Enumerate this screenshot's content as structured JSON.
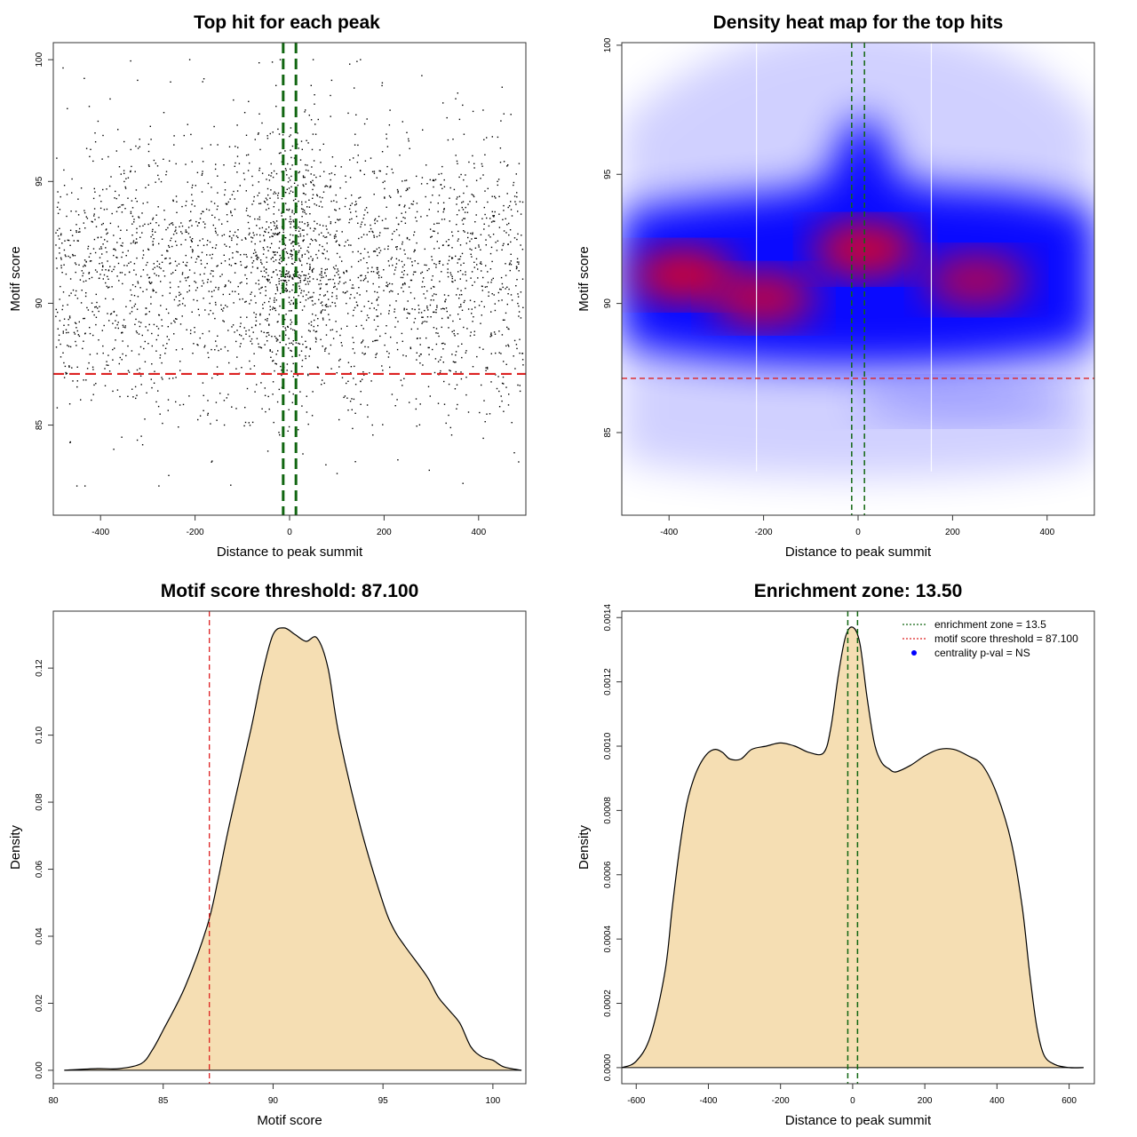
{
  "colors": {
    "threshold_line": "#dd2222",
    "enrichment_line": "#116611",
    "density_fill": "#f5deb3",
    "heat_low": "#ffffff",
    "heat_mid": "#0000ff",
    "heat_high": "#ff0000",
    "point": "#000000",
    "centrality_marker": "#0000ff"
  },
  "chart_data": [
    {
      "id": "scatter",
      "type": "scatter",
      "title": "Top hit for each peak",
      "xlabel": "Distance to peak summit",
      "ylabel": "Motif score",
      "xlim": [
        -500,
        500
      ],
      "ylim": [
        81.3,
        100.7
      ],
      "xticks": [
        -400,
        -200,
        0,
        200,
        400
      ],
      "yticks": [
        85,
        90,
        95,
        100
      ],
      "threshold": 87.1,
      "enrichment_lines": [
        -13.5,
        13.5
      ],
      "n_points": 3000,
      "seed": 1,
      "score_mean": 91.3,
      "score_sd": 2.9,
      "central_fraction": 0.12
    },
    {
      "id": "heatmap",
      "type": "heatmap",
      "title": "Density heat map for the top hits",
      "xlabel": "Distance to peak summit",
      "ylabel": "Motif score",
      "xlim": [
        -500,
        500
      ],
      "ylim": [
        81.8,
        100.1
      ],
      "xticks": [
        -400,
        -200,
        0,
        200,
        400
      ],
      "yticks": [
        85,
        90,
        95,
        100
      ],
      "threshold": 87.1,
      "enrichment_lines": [
        -13.5,
        13.5
      ],
      "hotspots": [
        {
          "x": -370,
          "y": 91.1,
          "weight": 1.0
        },
        {
          "x": -200,
          "y": 90.2,
          "weight": 0.9
        },
        {
          "x": 15,
          "y": 92.1,
          "weight": 1.0
        },
        {
          "x": 250,
          "y": 90.9,
          "weight": 0.8
        }
      ]
    },
    {
      "id": "score-density",
      "type": "area",
      "title": "Motif score threshold: 87.100",
      "xlabel": "Motif score",
      "ylabel": "Density",
      "xlim": [
        80,
        101.5
      ],
      "ylim": [
        -0.004,
        0.137
      ],
      "xticks": [
        80,
        85,
        90,
        95,
        100
      ],
      "yticks": [
        0.0,
        0.02,
        0.04,
        0.06,
        0.08,
        0.1,
        0.12
      ],
      "ytick_labels": [
        "0.00",
        "0.02",
        "0.04",
        "0.06",
        "0.08",
        "0.10",
        "0.12"
      ],
      "threshold": 87.1,
      "x": [
        80.5,
        82.0,
        83.0,
        84.0,
        84.5,
        85.0,
        86.0,
        87.0,
        87.5,
        88.0,
        89.0,
        89.5,
        90.0,
        90.5,
        91.0,
        91.5,
        92.0,
        92.5,
        93.0,
        94.0,
        95.0,
        95.5,
        96.0,
        97.0,
        97.5,
        98.0,
        98.5,
        99.0,
        99.5,
        100.0,
        100.5,
        101.3
      ],
      "y": [
        0.0,
        0.0005,
        0.0005,
        0.002,
        0.006,
        0.012,
        0.025,
        0.043,
        0.057,
        0.073,
        0.102,
        0.118,
        0.13,
        0.132,
        0.13,
        0.128,
        0.129,
        0.12,
        0.1,
        0.072,
        0.05,
        0.042,
        0.037,
        0.028,
        0.022,
        0.018,
        0.014,
        0.007,
        0.004,
        0.003,
        0.001,
        0.0
      ]
    },
    {
      "id": "distance-density",
      "type": "area",
      "title": "Enrichment zone: 13.50",
      "xlabel": "Distance to peak summit",
      "ylabel": "Density",
      "xlim": [
        -640,
        670
      ],
      "ylim": [
        -5e-05,
        0.00142
      ],
      "xticks": [
        -600,
        -400,
        -200,
        0,
        200,
        400,
        600
      ],
      "yticks": [
        0,
        0.0002,
        0.0004,
        0.0006,
        0.0008,
        0.001,
        0.0012,
        0.0014
      ],
      "ytick_labels": [
        "0.0000",
        "0.0002",
        "0.0004",
        "0.0006",
        "0.0008",
        "0.0010",
        "0.0012",
        "0.0014"
      ],
      "enrichment_lines": [
        -13.5,
        13.5
      ],
      "x": [
        -640,
        -600,
        -560,
        -520,
        -500,
        -480,
        -460,
        -440,
        -420,
        -400,
        -380,
        -360,
        -340,
        -310,
        -280,
        -240,
        -200,
        -160,
        -120,
        -80,
        -60,
        -40,
        -20,
        0,
        20,
        40,
        60,
        80,
        100,
        120,
        160,
        200,
        240,
        280,
        320,
        360,
        400,
        440,
        470,
        490,
        510,
        530,
        560,
        600,
        640
      ],
      "y": [
        0.0,
        2e-05,
        0.0001,
        0.0003,
        0.0005,
        0.00068,
        0.00082,
        0.0009,
        0.00095,
        0.00098,
        0.00099,
        0.00098,
        0.00096,
        0.00096,
        0.00099,
        0.001,
        0.00101,
        0.001,
        0.00098,
        0.00098,
        0.00106,
        0.00122,
        0.00134,
        0.00137,
        0.00132,
        0.00115,
        0.00101,
        0.00095,
        0.00093,
        0.00092,
        0.00094,
        0.00097,
        0.00099,
        0.00099,
        0.00097,
        0.00094,
        0.00085,
        0.0007,
        0.0005,
        0.0003,
        0.00013,
        4e-05,
        1e-05,
        0.0,
        0.0
      ]
    }
  ],
  "legend": {
    "entries": [
      {
        "label": "enrichment zone = 13.5",
        "style": "dotted-green"
      },
      {
        "label": "motif score threshold = 87.100",
        "style": "dotted-red"
      },
      {
        "label": "centrality p-val = NS",
        "style": "blue-dot"
      }
    ]
  }
}
